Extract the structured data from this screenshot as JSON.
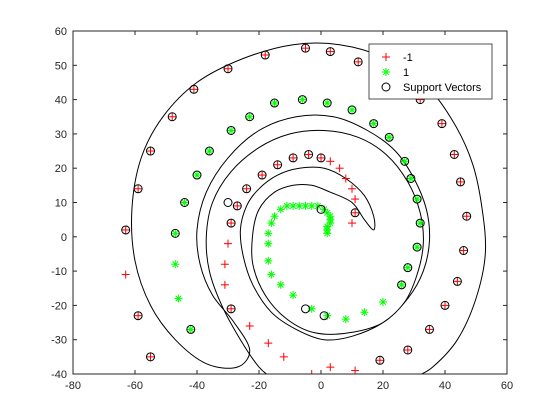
{
  "chart_data": {
    "type": "scatter",
    "title": "",
    "xlabel": "",
    "ylabel": "",
    "xlim": [
      -80,
      60
    ],
    "ylim": [
      -40,
      60
    ],
    "xticks": [
      -80,
      -60,
      -40,
      -20,
      0,
      20,
      40,
      60
    ],
    "yticks": [
      -40,
      -30,
      -20,
      -10,
      0,
      10,
      20,
      30,
      40,
      50,
      60
    ],
    "grid": false,
    "legend_position": "top-right",
    "series": [
      {
        "name": "-1",
        "marker": "plus",
        "color": "#ff0000",
        "points": [
          [
            -63,
            2
          ],
          [
            -63,
            -11
          ],
          [
            -59,
            14
          ],
          [
            -59,
            -23
          ],
          [
            -55,
            25
          ],
          [
            -55,
            -35
          ],
          [
            -48,
            35
          ],
          [
            -41,
            43
          ],
          [
            -30,
            49
          ],
          [
            -18,
            53
          ],
          [
            -5,
            55
          ],
          [
            3,
            54
          ],
          [
            12,
            51
          ],
          [
            20,
            48
          ],
          [
            32,
            40
          ],
          [
            39,
            33
          ],
          [
            43,
            24
          ],
          [
            45,
            16
          ],
          [
            47,
            6
          ],
          [
            46,
            -4
          ],
          [
            44,
            -13
          ],
          [
            40,
            -20
          ],
          [
            35,
            -27
          ],
          [
            28,
            -33
          ],
          [
            19,
            -36
          ],
          [
            11,
            -39
          ],
          [
            3,
            -38
          ],
          [
            -3,
            -40
          ],
          [
            -12,
            -35
          ],
          [
            -17,
            -31
          ],
          [
            -23,
            -26
          ],
          [
            -29,
            -21
          ],
          [
            -31,
            -14
          ],
          [
            -31,
            -8
          ],
          [
            -30,
            -2
          ],
          [
            -29,
            4
          ],
          [
            -27,
            9
          ],
          [
            -24,
            14
          ],
          [
            -19,
            18
          ],
          [
            -14,
            21
          ],
          [
            -9,
            23
          ],
          [
            -4,
            24
          ],
          [
            0,
            23
          ],
          [
            3,
            22
          ],
          [
            6,
            20
          ],
          [
            8,
            17
          ],
          [
            10,
            14
          ],
          [
            11,
            11
          ],
          [
            11,
            7
          ],
          [
            10,
            4
          ]
        ]
      },
      {
        "name": "1",
        "marker": "asterisk",
        "color": "#00ff00",
        "points": [
          [
            -47,
            -8
          ],
          [
            -47,
            1
          ],
          [
            -46,
            -18
          ],
          [
            -44,
            10
          ],
          [
            -42,
            -27
          ],
          [
            -40,
            18
          ],
          [
            -36,
            25
          ],
          [
            -29,
            31
          ],
          [
            -23,
            35
          ],
          [
            -15,
            39
          ],
          [
            -6,
            40
          ],
          [
            2,
            39
          ],
          [
            10,
            37
          ],
          [
            17,
            33
          ],
          [
            22,
            29
          ],
          [
            27,
            22
          ],
          [
            29,
            17
          ],
          [
            31,
            11
          ],
          [
            32,
            4
          ],
          [
            31,
            -3
          ],
          [
            28,
            -9
          ],
          [
            26,
            -14
          ],
          [
            20,
            -19
          ],
          [
            14,
            -22
          ],
          [
            8,
            -24
          ],
          [
            2,
            -23
          ],
          [
            -3,
            -21
          ],
          [
            -9,
            -17
          ],
          [
            -13,
            -14
          ],
          [
            -16,
            -11
          ],
          [
            -17,
            -7
          ],
          [
            -17,
            -2
          ],
          [
            -17,
            1
          ],
          [
            -16,
            4
          ],
          [
            -15,
            6
          ],
          [
            -13,
            8
          ],
          [
            -11,
            9
          ],
          [
            -9,
            9
          ],
          [
            -7,
            9
          ],
          [
            -5,
            9
          ],
          [
            -3,
            9
          ],
          [
            -1,
            9
          ],
          [
            1,
            8
          ],
          [
            2,
            7
          ],
          [
            3,
            6
          ],
          [
            3,
            5
          ],
          [
            3,
            4
          ],
          [
            2,
            3
          ],
          [
            2,
            2
          ],
          [
            2,
            1
          ]
        ]
      },
      {
        "name": "Support Vectors",
        "marker": "circle",
        "color": "#000000",
        "points": [
          [
            -63,
            2
          ],
          [
            -59,
            14
          ],
          [
            -59,
            -23
          ],
          [
            -55,
            25
          ],
          [
            -55,
            -35
          ],
          [
            -48,
            35
          ],
          [
            -41,
            43
          ],
          [
            -30,
            49
          ],
          [
            -18,
            53
          ],
          [
            -5,
            55
          ],
          [
            3,
            54
          ],
          [
            12,
            51
          ],
          [
            20,
            48
          ],
          [
            32,
            40
          ],
          [
            39,
            33
          ],
          [
            43,
            24
          ],
          [
            45,
            16
          ],
          [
            47,
            6
          ],
          [
            46,
            -4
          ],
          [
            44,
            -13
          ],
          [
            40,
            -20
          ],
          [
            35,
            -27
          ],
          [
            28,
            -33
          ],
          [
            19,
            -36
          ],
          [
            -47,
            1
          ],
          [
            -44,
            10
          ],
          [
            -42,
            -27
          ],
          [
            -40,
            18
          ],
          [
            -36,
            25
          ],
          [
            -29,
            31
          ],
          [
            -23,
            35
          ],
          [
            -15,
            39
          ],
          [
            -6,
            40
          ],
          [
            2,
            39
          ],
          [
            10,
            37
          ],
          [
            17,
            33
          ],
          [
            22,
            29
          ],
          [
            27,
            22
          ],
          [
            29,
            17
          ],
          [
            31,
            11
          ],
          [
            32,
            4
          ],
          [
            31,
            -3
          ],
          [
            28,
            -9
          ],
          [
            26,
            -14
          ],
          [
            -29,
            4
          ],
          [
            -27,
            9
          ],
          [
            -24,
            14
          ],
          [
            -19,
            18
          ],
          [
            -14,
            21
          ],
          [
            -9,
            23
          ],
          [
            -4,
            24
          ],
          [
            0,
            23
          ],
          [
            11,
            7
          ],
          [
            -29,
            -21
          ],
          [
            -5,
            -21
          ],
          [
            1,
            -23
          ],
          [
            0,
            8
          ],
          [
            -30,
            10
          ]
        ]
      }
    ],
    "decision_boundaries": [
      [
        [
          30,
          -41
        ],
        [
          36,
          -38
        ],
        [
          44,
          -30
        ],
        [
          50,
          -18
        ],
        [
          53,
          -5
        ],
        [
          52,
          8
        ],
        [
          49,
          21
        ],
        [
          43,
          33
        ],
        [
          34,
          44
        ],
        [
          21,
          52
        ],
        [
          6,
          56
        ],
        [
          -9,
          56
        ],
        [
          -25,
          52
        ],
        [
          -40,
          45
        ],
        [
          -51,
          35
        ],
        [
          -58,
          23
        ],
        [
          -61,
          8
        ],
        [
          -60,
          -7
        ],
        [
          -55,
          -20
        ],
        [
          -47,
          -30
        ],
        [
          -37,
          -37
        ],
        [
          -27,
          -38
        ],
        [
          -23,
          -33
        ],
        [
          -28,
          -25
        ],
        [
          -35,
          -17
        ],
        [
          -39,
          -8
        ],
        [
          -40,
          2
        ],
        [
          -37,
          13
        ],
        [
          -30,
          23
        ],
        [
          -20,
          31
        ],
        [
          -8,
          35
        ],
        [
          4,
          35
        ],
        [
          15,
          31
        ],
        [
          24,
          25
        ],
        [
          30,
          17
        ],
        [
          34,
          8
        ],
        [
          35,
          -1
        ],
        [
          33,
          -10
        ],
        [
          28,
          -18
        ],
        [
          20,
          -25
        ],
        [
          9,
          -28
        ],
        [
          -2,
          -28
        ],
        [
          -11,
          -24
        ],
        [
          -18,
          -17
        ],
        [
          -22,
          -8
        ],
        [
          -22,
          1
        ],
        [
          -20,
          8
        ],
        [
          -15,
          13
        ],
        [
          -9,
          15
        ],
        [
          -3,
          15
        ],
        [
          3,
          13
        ],
        [
          10,
          10
        ],
        [
          14,
          5
        ],
        [
          17,
          2
        ],
        [
          17,
          6
        ],
        [
          14,
          12
        ],
        [
          8,
          17
        ],
        [
          1,
          20
        ],
        [
          -7,
          20
        ],
        [
          -14,
          18
        ],
        [
          -20,
          14
        ],
        [
          -24,
          9
        ],
        [
          -26,
          2
        ],
        [
          -25,
          -6
        ],
        [
          -22,
          -14
        ],
        [
          -16,
          -22
        ],
        [
          -8,
          -27
        ],
        [
          1,
          -30
        ],
        [
          10,
          -29
        ],
        [
          20,
          -25
        ],
        [
          27,
          -19
        ],
        [
          31,
          -11
        ],
        [
          33,
          -2
        ],
        [
          32,
          7
        ],
        [
          28,
          16
        ],
        [
          21,
          24
        ],
        [
          12,
          29
        ],
        [
          1,
          31
        ],
        [
          -10,
          30
        ],
        [
          -20,
          26
        ],
        [
          -29,
          19
        ],
        [
          -35,
          10
        ],
        [
          -37,
          0
        ],
        [
          -36,
          -10
        ],
        [
          -32,
          -20
        ],
        [
          -26,
          -30
        ],
        [
          -20,
          -38
        ],
        [
          -16,
          -41
        ]
      ]
    ]
  }
}
